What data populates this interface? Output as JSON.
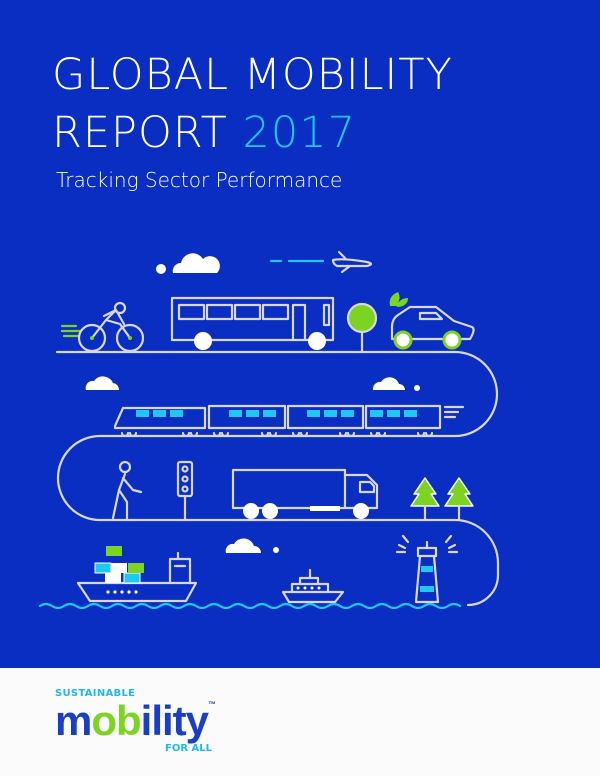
{
  "header": {
    "title_line1": "GLOBAL MOBILITY",
    "title_line2": "REPORT",
    "year": "2017",
    "subtitle": "Tracking Sector Performance"
  },
  "colors": {
    "background": "#0a2dc2",
    "accent_cyan": "#1fc8f0",
    "accent_green": "#7cd322",
    "line": "#d8d8dc"
  },
  "illustration": {
    "icons": [
      "cloud-icon",
      "airplane-icon",
      "cyclist-icon",
      "bus-icon",
      "tree-icon",
      "electric-car-icon",
      "train-icon",
      "pedestrian-icon",
      "traffic-light-icon",
      "truck-icon",
      "pine-tree-icon",
      "cargo-ship-icon",
      "ferry-icon",
      "lighthouse-icon"
    ]
  },
  "footer": {
    "logo": {
      "top": "SUSTAINABLE",
      "word_start": "m",
      "word_oo": "ob",
      "word_end": "ility",
      "trademark": "™",
      "bottom": "FOR ALL"
    }
  }
}
